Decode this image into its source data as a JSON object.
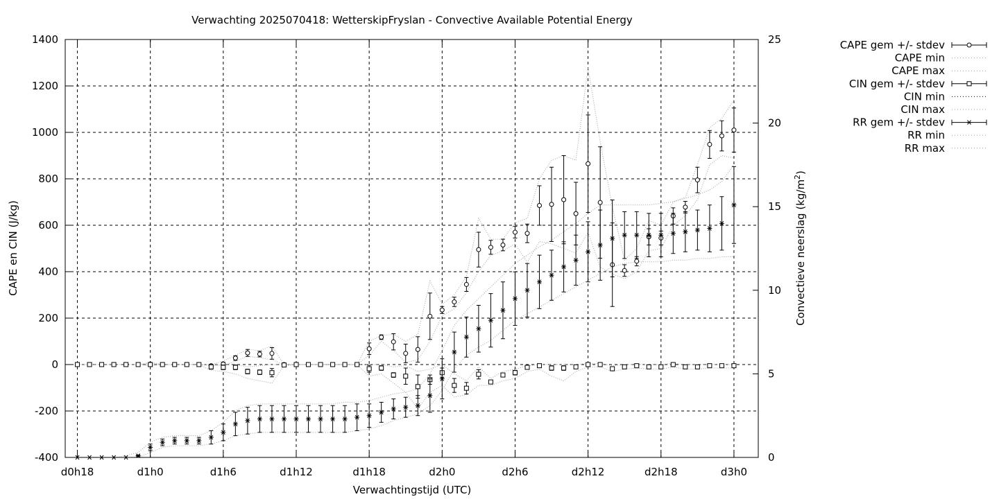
{
  "chart_data": {
    "type": "line",
    "title": "Verwachting 2025070418: WetterskipFryslan - Convective Available Potential Energy",
    "xlabel": "Verwachtingstijd (UTC)",
    "ylabel": "CAPE en CIN (J/kg)",
    "y2label_base": "Convectieve neerslag (kg/m",
    "y2label_sup": "2",
    "y2label_end": ")",
    "x_tick_hours": [
      18,
      24,
      30,
      36,
      42,
      48,
      54,
      60,
      66,
      72
    ],
    "x_tick_labels": [
      "d0h18",
      "d1h0",
      "d1h6",
      "d1h12",
      "d1h18",
      "d2h0",
      "d2h6",
      "d2h12",
      "d2h18",
      "d3h0"
    ],
    "xlim": [
      17,
      74
    ],
    "ylim": [
      -400,
      1400
    ],
    "y_ticks": [
      -400,
      -200,
      0,
      200,
      400,
      600,
      800,
      1000,
      1200,
      1400
    ],
    "y2lim": [
      0,
      25
    ],
    "y2_ticks": [
      0,
      5,
      10,
      15,
      20,
      25
    ],
    "grid": true,
    "legend_position": "outside-top-right",
    "legend": [
      "CAPE gem +/- stdev",
      "CAPE min",
      "CAPE max",
      "CIN gem +/- stdev",
      "CIN min",
      "CIN max",
      "RR gem +/- stdev",
      "RR min",
      "RR max"
    ],
    "x": [
      18,
      19,
      20,
      21,
      22,
      23,
      24,
      25,
      26,
      27,
      28,
      29,
      30,
      31,
      32,
      33,
      34,
      35,
      36,
      37,
      38,
      39,
      40,
      41,
      42,
      43,
      44,
      45,
      46,
      47,
      48,
      49,
      50,
      51,
      52,
      53,
      54,
      55,
      56,
      57,
      58,
      59,
      60,
      61,
      62,
      63,
      64,
      65,
      66,
      67,
      68,
      69,
      70,
      71,
      72
    ],
    "series": [
      {
        "name": "CAPE gem +/- stdev",
        "axis": "y1",
        "marker": "circle",
        "mean": [
          0,
          0,
          0,
          0,
          0,
          0,
          2,
          0,
          0,
          0,
          0,
          -5,
          2,
          28,
          50,
          45,
          48,
          0,
          0,
          0,
          0,
          0,
          0,
          0,
          68,
          118,
          98,
          48,
          65,
          208,
          235,
          270,
          345,
          495,
          505,
          515,
          570,
          565,
          685,
          690,
          710,
          650,
          865,
          698,
          430,
          405,
          445,
          550,
          545,
          640,
          678,
          795,
          948,
          985,
          1010
        ],
        "sd": [
          0,
          0,
          0,
          0,
          0,
          0,
          5,
          0,
          0,
          0,
          0,
          5,
          8,
          10,
          15,
          12,
          25,
          0,
          0,
          0,
          0,
          0,
          0,
          0,
          25,
          10,
          35,
          40,
          55,
          100,
          15,
          20,
          30,
          75,
          30,
          25,
          25,
          40,
          85,
          160,
          190,
          135,
          210,
          240,
          180,
          25,
          20,
          35,
          30,
          35,
          25,
          55,
          60,
          65,
          95
        ]
      },
      {
        "name": "CAPE min",
        "axis": "y1",
        "style": "dotted",
        "values": [
          0,
          0,
          0,
          0,
          0,
          0,
          0,
          0,
          0,
          0,
          0,
          -5,
          -5,
          15,
          35,
          30,
          20,
          0,
          0,
          0,
          0,
          0,
          0,
          0,
          40,
          100,
          60,
          10,
          20,
          100,
          210,
          240,
          310,
          400,
          470,
          490,
          520,
          440,
          530,
          520,
          500,
          480,
          570,
          420,
          390,
          370,
          400,
          490,
          500,
          600,
          640,
          710,
          860,
          900,
          890
        ]
      },
      {
        "name": "CAPE max",
        "axis": "y1",
        "style": "dotted",
        "values": [
          0,
          0,
          0,
          0,
          0,
          0,
          10,
          0,
          0,
          0,
          0,
          0,
          15,
          40,
          65,
          60,
          80,
          0,
          0,
          0,
          0,
          0,
          0,
          0,
          100,
          125,
          130,
          100,
          130,
          360,
          260,
          300,
          380,
          630,
          540,
          540,
          610,
          630,
          800,
          880,
          900,
          880,
          1280,
          960,
          680,
          450,
          500,
          620,
          600,
          700,
          720,
          860,
          1020,
          1060,
          1140
        ]
      },
      {
        "name": "CIN gem +/- stdev",
        "axis": "y1",
        "marker": "square",
        "mean": [
          0,
          0,
          0,
          0,
          0,
          0,
          0,
          0,
          0,
          0,
          0,
          -10,
          -12,
          -12,
          -30,
          -33,
          -35,
          -2,
          0,
          0,
          0,
          0,
          0,
          0,
          -18,
          -15,
          -45,
          -50,
          -95,
          -65,
          -35,
          -90,
          -102,
          -42,
          -75,
          -45,
          -35,
          -12,
          -5,
          -15,
          -15,
          -10,
          0,
          0,
          -18,
          -10,
          -5,
          -10,
          -10,
          0,
          -10,
          -10,
          -5,
          -5,
          -5
        ],
        "sd": [
          0,
          0,
          0,
          0,
          0,
          0,
          0,
          0,
          0,
          0,
          0,
          10,
          10,
          10,
          10,
          10,
          18,
          2,
          0,
          0,
          0,
          0,
          0,
          0,
          15,
          10,
          10,
          35,
          50,
          20,
          20,
          30,
          25,
          20,
          5,
          5,
          10,
          5,
          3,
          10,
          10,
          5,
          2,
          5,
          3,
          3,
          3,
          3,
          3,
          3,
          3,
          3,
          3,
          3,
          3
        ]
      },
      {
        "name": "CIN min",
        "axis": "y1",
        "style": "dotted",
        "values": [
          0,
          0,
          0,
          0,
          0,
          0,
          -5,
          0,
          0,
          0,
          0,
          -25,
          -30,
          -40,
          -60,
          -70,
          -80,
          -5,
          0,
          0,
          0,
          0,
          0,
          0,
          -50,
          -40,
          -80,
          -120,
          -190,
          -120,
          -90,
          -140,
          -130,
          -90,
          -90,
          -70,
          -60,
          -30,
          -20,
          -50,
          -70,
          -30,
          -10,
          -10,
          -30,
          -20,
          -15,
          -20,
          -20,
          -10,
          -20,
          -20,
          -15,
          -15,
          -15
        ]
      },
      {
        "name": "CIN max",
        "axis": "y1",
        "style": "dotted",
        "values": [
          0,
          0,
          0,
          0,
          0,
          0,
          5,
          0,
          0,
          0,
          0,
          0,
          0,
          0,
          -10,
          -5,
          0,
          0,
          0,
          0,
          0,
          0,
          0,
          0,
          0,
          0,
          -10,
          -5,
          -30,
          -20,
          0,
          -40,
          -70,
          -10,
          -60,
          -30,
          -20,
          -5,
          0,
          0,
          0,
          0,
          5,
          5,
          -5,
          0,
          0,
          0,
          0,
          5,
          0,
          0,
          0,
          0,
          0
        ]
      },
      {
        "name": "RR gem +/- stdev",
        "axis": "y2",
        "marker": "star",
        "mean": [
          0,
          0,
          0,
          0,
          0,
          0.1,
          0.6,
          0.9,
          1.0,
          1.0,
          1.0,
          1.2,
          1.5,
          2.0,
          2.2,
          2.3,
          2.3,
          2.3,
          2.3,
          2.3,
          2.3,
          2.3,
          2.3,
          2.4,
          2.5,
          2.7,
          2.9,
          3.0,
          3.1,
          3.7,
          4.7,
          6.3,
          7.2,
          7.7,
          8.2,
          8.8,
          9.5,
          10.0,
          10.5,
          10.9,
          11.4,
          11.8,
          12.3,
          12.7,
          13.1,
          13.3,
          13.3,
          13.3,
          13.3,
          13.4,
          13.5,
          13.6,
          13.7,
          14.0,
          15.1
        ],
        "sd": [
          0,
          0,
          0,
          0,
          0,
          0.05,
          0.2,
          0.2,
          0.2,
          0.2,
          0.2,
          0.4,
          0.5,
          0.7,
          0.8,
          0.8,
          0.8,
          0.8,
          0.8,
          0.8,
          0.8,
          0.8,
          0.8,
          0.8,
          0.7,
          0.6,
          0.6,
          0.6,
          0.6,
          1.0,
          1.2,
          1.2,
          1.2,
          1.4,
          1.6,
          1.7,
          1.6,
          1.6,
          1.6,
          1.5,
          1.5,
          1.5,
          1.8,
          2.1,
          2.3,
          1.4,
          1.4,
          1.3,
          1.3,
          1.2,
          1.2,
          1.2,
          1.4,
          1.6,
          2.3
        ]
      },
      {
        "name": "RR min",
        "axis": "y2",
        "style": "dotted",
        "values": [
          0,
          0,
          0,
          0,
          0,
          0,
          0.3,
          0.6,
          0.7,
          0.7,
          0.7,
          0.8,
          1.0,
          1.3,
          1.4,
          1.5,
          1.5,
          1.5,
          1.5,
          1.5,
          1.5,
          1.5,
          1.5,
          1.6,
          1.7,
          1.9,
          2.2,
          2.4,
          2.6,
          3.1,
          4.0,
          5.3,
          6.1,
          6.6,
          7.0,
          7.6,
          8.2,
          8.6,
          9.0,
          9.4,
          9.8,
          10.2,
          10.6,
          11.0,
          11.4,
          11.6,
          11.7,
          11.7,
          11.7,
          11.8,
          11.8,
          11.9,
          11.9,
          12.0,
          12.0
        ]
      },
      {
        "name": "RR max",
        "axis": "y2",
        "style": "dotted",
        "values": [
          0,
          0,
          0,
          0,
          0.1,
          0.3,
          0.9,
          1.2,
          1.3,
          1.3,
          1.3,
          1.6,
          2.1,
          2.8,
          3.1,
          3.2,
          3.2,
          3.2,
          3.2,
          3.2,
          3.2,
          3.2,
          3.3,
          3.3,
          3.4,
          3.6,
          3.8,
          3.9,
          4.1,
          5.0,
          6.4,
          7.9,
          8.8,
          9.5,
          10.2,
          10.9,
          11.6,
          12.1,
          12.6,
          13.0,
          13.5,
          14.0,
          14.6,
          15.1,
          15.1,
          15.1,
          15.1,
          15.1,
          15.2,
          15.3,
          15.5,
          15.7,
          16.0,
          16.5,
          17.5
        ]
      }
    ]
  }
}
